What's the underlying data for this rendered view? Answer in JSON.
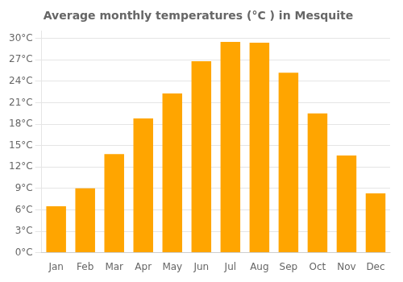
{
  "chart_data": {
    "type": "bar",
    "title": "Average monthly temperatures (°C ) in Mesquite",
    "categories": [
      "Jan",
      "Feb",
      "Mar",
      "Apr",
      "May",
      "Jun",
      "Jul",
      "Aug",
      "Sep",
      "Oct",
      "Nov",
      "Dec"
    ],
    "values": [
      6.5,
      9.0,
      13.8,
      18.8,
      22.3,
      26.8,
      29.5,
      29.4,
      25.2,
      19.5,
      13.6,
      8.3
    ],
    "color": "#FFA500",
    "ylim": [
      0,
      31
    ],
    "yticks": [
      {
        "value": 0,
        "label": "0°C"
      },
      {
        "value": 3,
        "label": "3°C"
      },
      {
        "value": 6,
        "label": "6°C"
      },
      {
        "value": 9,
        "label": "9°C"
      },
      {
        "value": 12,
        "label": "12°C"
      },
      {
        "value": 15,
        "label": "15°C"
      },
      {
        "value": 18,
        "label": "18°C"
      },
      {
        "value": 21,
        "label": "21°C"
      },
      {
        "value": 24,
        "label": "24°C"
      },
      {
        "value": 27,
        "label": "27°C"
      },
      {
        "value": 30,
        "label": "30°C"
      }
    ],
    "grid": true
  }
}
